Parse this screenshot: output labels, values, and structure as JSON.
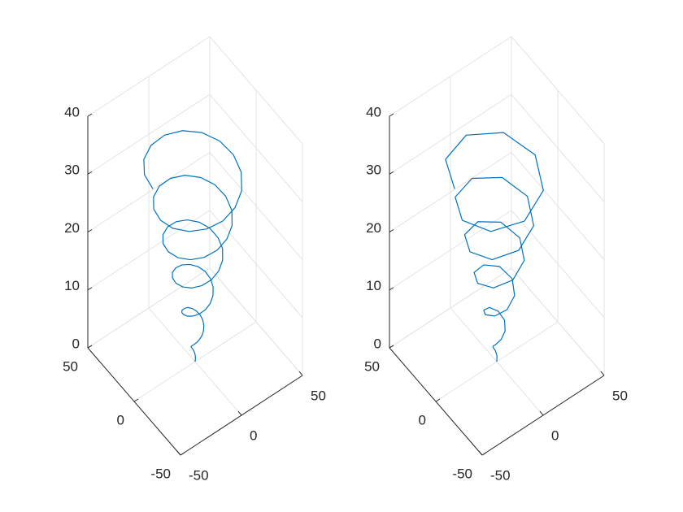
{
  "chart_data": [
    {
      "type": "line3d",
      "color": "#0072BD",
      "grid": true,
      "xlim": [
        -50,
        50
      ],
      "ylim": [
        -50,
        50
      ],
      "zlim": [
        0,
        40
      ],
      "xticks": [
        -50,
        0,
        50
      ],
      "yticks": [
        -50,
        0,
        50
      ],
      "zticks": [
        0,
        10,
        20,
        30,
        40
      ],
      "x": [
        0,
        0.4,
        0.6,
        0.5,
        0,
        -0.8,
        -1.7,
        -2.5,
        -3.1,
        -3.3,
        -2.8,
        -1.7,
        0,
        2.0,
        3.9,
        5.4,
        6.3,
        6.2,
        5.0,
        2.9,
        0,
        -3.2,
        -6.1,
        -8.3,
        -9.4,
        -9.1,
        -7.2,
        -4.1,
        0,
        4.4,
        8.3,
        11.2,
        12.6,
        12.0,
        9.4,
        5.3,
        0,
        -5.6,
        -10.6,
        -14.1,
        -15.7,
        -14.9,
        -11.7,
        -6.5,
        0,
        6.8,
        12.8,
        17.1,
        18.8,
        17.8,
        13.9,
        7.7,
        0,
        -8.0,
        -15.0,
        -20.0,
        -22.0,
        -20.7,
        -16.1,
        -8.9,
        0,
        9.2,
        17.2,
        22.9,
        25.1,
        23.6,
        18.3,
        10.1,
        0,
        -10.4,
        -19.4,
        -25.8,
        -28.3,
        -26.5,
        -20.5,
        -11.3,
        0,
        11.6,
        21.7,
        28.7,
        31.4,
        29.4,
        22.8,
        12.5,
        0,
        -12.8,
        -23.9,
        -31.6,
        -34.6
      ],
      "y": [
        0,
        0.2,
        0.6,
        1.1,
        1.6,
        1.8,
        1.7,
        1.1,
        0,
        -1.4,
        -2.8,
        -4.0,
        -4.7,
        -4.7,
        -3.9,
        -2.3,
        0,
        2.6,
        5.0,
        6.9,
        7.9,
        7.6,
        6.1,
        3.5,
        0,
        -3.8,
        -7.2,
        -9.8,
        -11.0,
        -10.5,
        -8.3,
        -4.7,
        0,
        5.0,
        9.4,
        12.7,
        14.1,
        13.4,
        10.6,
        5.9,
        0,
        -6.2,
        -11.7,
        -15.6,
        -17.3,
        -16.3,
        -12.8,
        -7.1,
        0,
        7.4,
        13.9,
        18.5,
        20.4,
        19.2,
        15.0,
        8.3,
        0,
        -8.6,
        -16.1,
        -21.4,
        -23.6,
        -22.1,
        -17.2,
        -9.5,
        0,
        9.8,
        18.3,
        24.3,
        26.7,
        25.0,
        19.4,
        10.7,
        0,
        -11.0,
        -20.5,
        -27.2,
        -29.8,
        -27.9,
        -21.7,
        -11.9,
        0,
        12.2,
        22.8,
        30.1,
        33.0,
        30.8,
        23.9,
        13.1,
        0
      ],
      "z": [
        0,
        0.4,
        0.8,
        1.2,
        1.6,
        2.0,
        2.4,
        2.7,
        3.1,
        3.5,
        3.9,
        4.3,
        4.7,
        5.1,
        5.5,
        5.9,
        6.3,
        6.7,
        7.1,
        7.5,
        7.9,
        8.2,
        8.6,
        9.0,
        9.4,
        9.8,
        10.2,
        10.6,
        11.0,
        11.4,
        11.8,
        12.2,
        12.6,
        13.0,
        13.4,
        13.7,
        14.1,
        14.5,
        14.9,
        15.3,
        15.7,
        16.1,
        16.5,
        16.9,
        17.3,
        17.7,
        18.1,
        18.5,
        18.8,
        19.2,
        19.6,
        20.0,
        20.4,
        20.8,
        21.2,
        21.6,
        22.0,
        22.4,
        22.8,
        23.2,
        23.6,
        24.0,
        24.3,
        24.7,
        25.1,
        25.5,
        25.9,
        26.3,
        26.7,
        27.1,
        27.5,
        27.9,
        28.3,
        28.7,
        29.1,
        29.5,
        29.8,
        30.2,
        30.6,
        31.0,
        31.4,
        31.8,
        32.2,
        32.6,
        33.0,
        33.4,
        33.8,
        34.2,
        34.6
      ]
    },
    {
      "type": "line3d",
      "color": "#0072BD",
      "grid": true,
      "xlim": [
        -50,
        50
      ],
      "ylim": [
        -50,
        50
      ],
      "zlim": [
        0,
        40
      ],
      "xticks": [
        -50,
        0,
        50
      ],
      "yticks": [
        -50,
        0,
        50
      ],
      "zticks": [
        0,
        10,
        20,
        30,
        40
      ],
      "x": [
        0,
        0.6,
        0,
        -1.7,
        -3.1,
        -2.8,
        0,
        3.9,
        6.3,
        5.0,
        0,
        -6.1,
        -9.4,
        -7.2,
        0,
        8.3,
        12.6,
        9.4,
        0,
        -10.6,
        -15.7,
        -11.7,
        0,
        12.8,
        18.8,
        13.9,
        0,
        -15.0,
        -22.0,
        -16.1,
        0,
        17.2,
        25.1,
        18.3,
        0,
        -19.4,
        -28.3,
        -20.5,
        0,
        21.7,
        31.4,
        22.8,
        0,
        -23.9,
        -34.6
      ],
      "y": [
        0,
        0.6,
        1.6,
        1.7,
        0,
        -2.8,
        -4.7,
        -3.9,
        0,
        5.0,
        7.9,
        6.1,
        0,
        -7.2,
        -11.0,
        -8.3,
        0,
        9.4,
        14.1,
        10.6,
        0,
        -11.7,
        -17.3,
        -12.8,
        0,
        13.9,
        20.4,
        15.0,
        0,
        -16.1,
        -23.6,
        -17.2,
        0,
        18.3,
        26.7,
        19.4,
        0,
        -20.5,
        -29.8,
        -21.7,
        0,
        22.8,
        33.0,
        23.9,
        0
      ],
      "z": [
        0,
        0.8,
        1.6,
        2.4,
        3.1,
        3.9,
        4.7,
        5.5,
        6.3,
        7.1,
        7.9,
        8.6,
        9.4,
        10.2,
        11.0,
        11.8,
        12.6,
        13.4,
        14.1,
        14.9,
        15.7,
        16.5,
        17.3,
        18.1,
        18.8,
        19.6,
        20.4,
        21.2,
        22.0,
        22.8,
        23.6,
        24.3,
        25.1,
        25.9,
        26.7,
        27.5,
        28.3,
        29.1,
        29.8,
        30.6,
        31.4,
        32.2,
        33.0,
        33.8,
        34.6
      ]
    }
  ]
}
